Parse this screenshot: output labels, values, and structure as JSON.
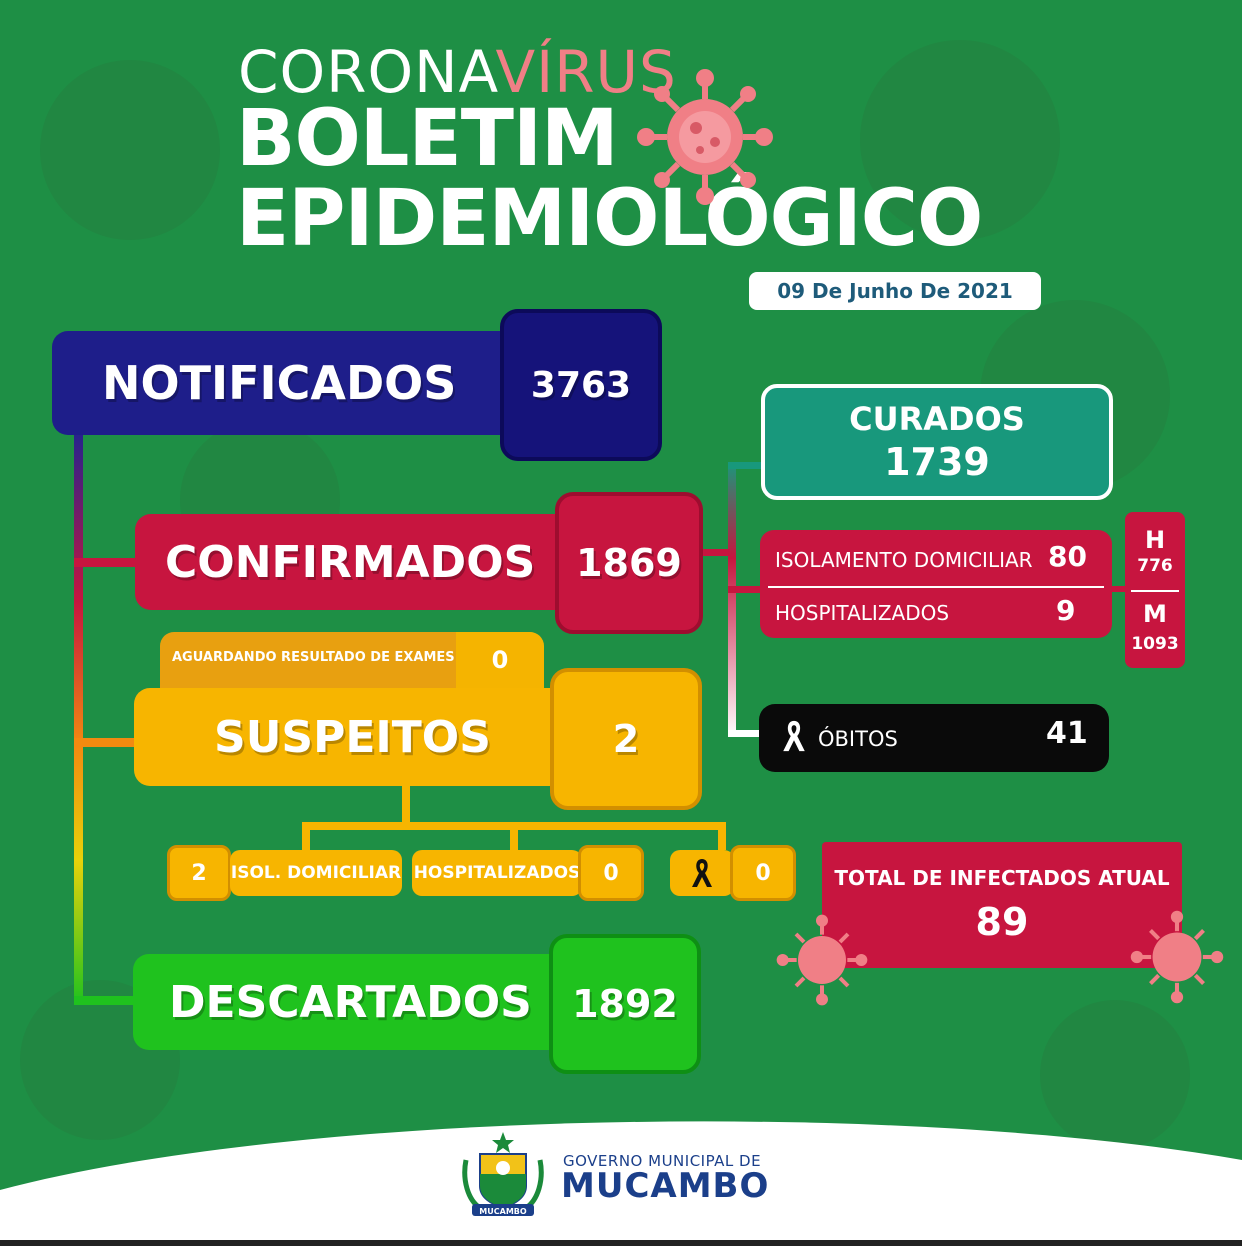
{
  "header": {
    "title_part1": "CORONA",
    "title_part2": "VÍRUS",
    "title_line2": "BOLETIM",
    "title_line3": "EPIDEMIOLÓGICO",
    "date": "09 De Junho De 2021"
  },
  "notificados": {
    "label": "NOTIFICADOS",
    "value": "3763"
  },
  "confirmados": {
    "label": "CONFIRMADOS",
    "value": "1869"
  },
  "aguardando": {
    "label": "AGUARDANDO RESULTADO DE EXAMES",
    "value": "0"
  },
  "suspeitos": {
    "label": "SUSPEITOS",
    "value": "2",
    "isol_value": "2",
    "isol_label": "ISOL. DOMICILIAR",
    "hosp_label": "HOSPITALIZADOS",
    "hosp_value": "0",
    "obitos_value": "0"
  },
  "descartados": {
    "label": "DESCARTADOS",
    "value": "1892"
  },
  "curados": {
    "label": "CURADOS",
    "value": "1739"
  },
  "isolamento": {
    "label": "ISOLAMENTO DOMICILIAR",
    "value": "80"
  },
  "hospitalizados": {
    "label": "HOSPITALIZADOS",
    "value": "9"
  },
  "sexo": {
    "h_label": "H",
    "h_value": "776",
    "m_label": "M",
    "m_value": "1093"
  },
  "obitos": {
    "label": "ÓBITOS",
    "value": "41"
  },
  "total_infectados": {
    "label": "TOTAL DE INFECTADOS ATUAL",
    "value": "89"
  },
  "footer": {
    "gov_label": "GOVERNO MUNICIPAL DE",
    "city": "MUCAMBO",
    "seal_text": "MUCAMBO"
  },
  "colors": {
    "background": "#1e8f45",
    "notificados": "#1e1e8a",
    "confirmados": "#c7153f",
    "suspeitos": "#f7b500",
    "descartados": "#1fc21e",
    "curados": "#18987c",
    "obitos": "#0a0a0a",
    "virus": "#f07f86"
  }
}
